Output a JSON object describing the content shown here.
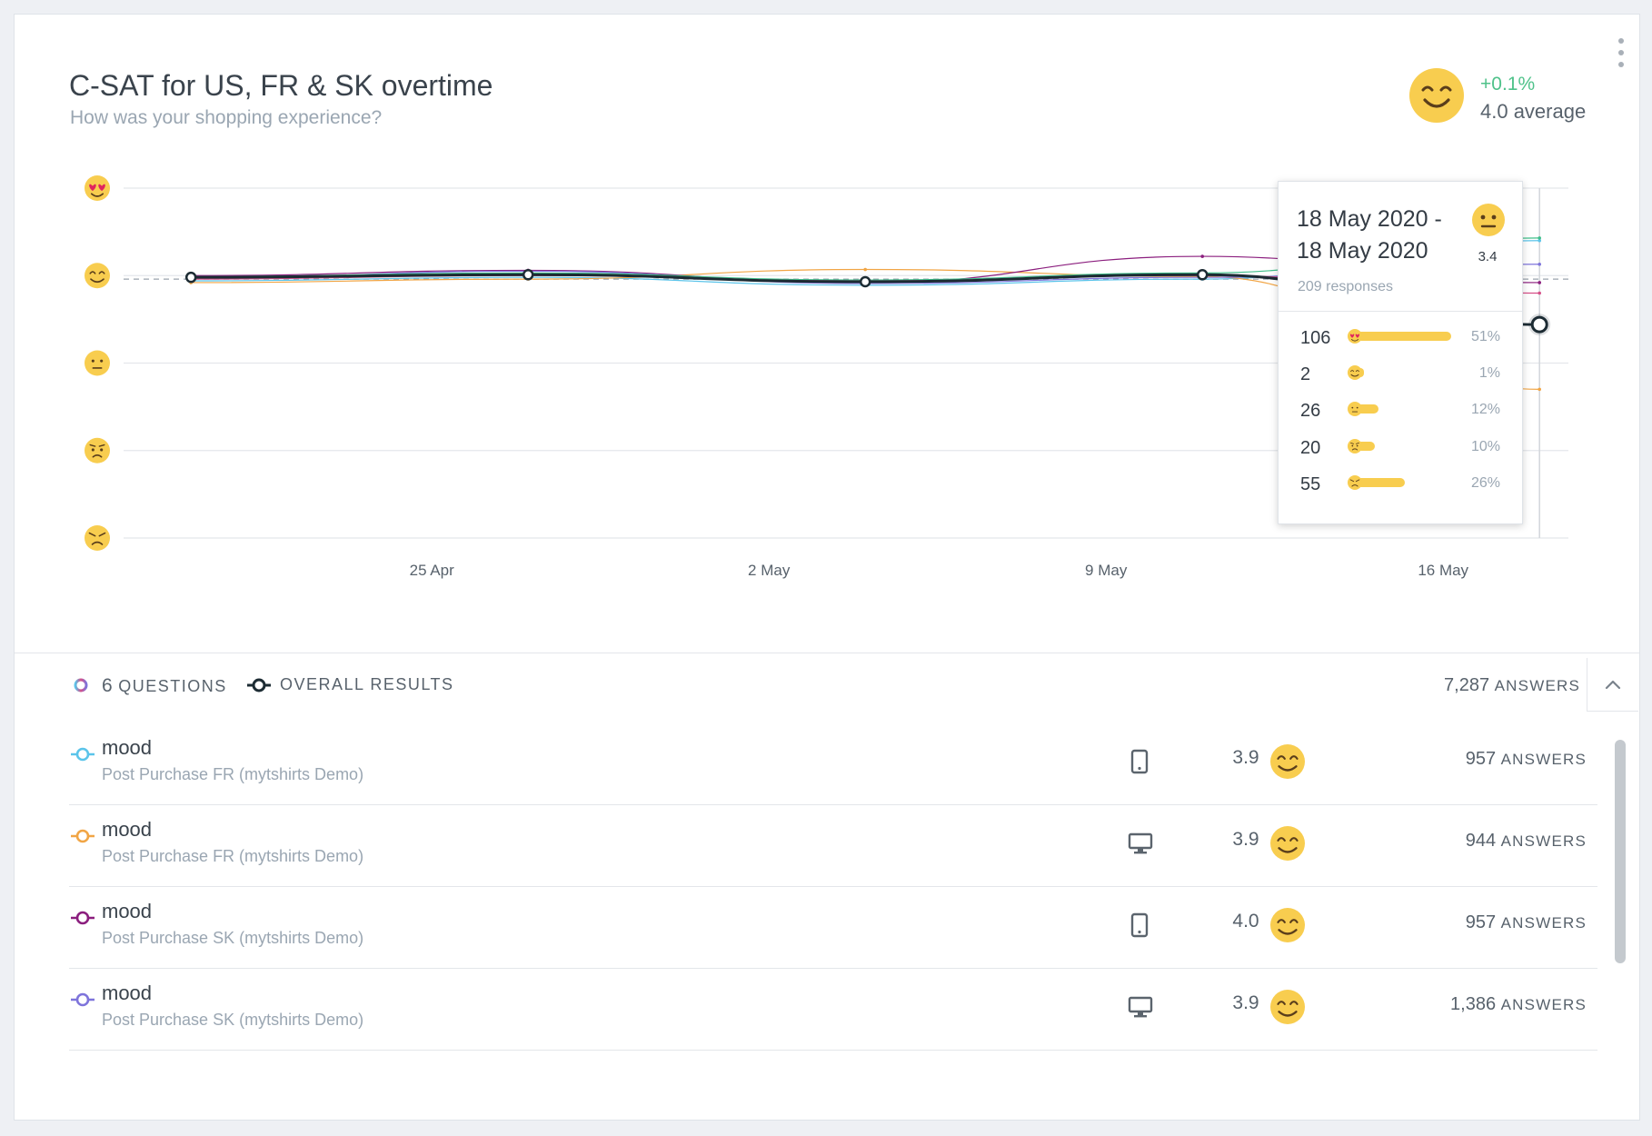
{
  "header": {
    "title": "C-SAT for US, FR & SK overtime",
    "subtitle": "How was your shopping experience?",
    "average_delta": "+0.1%",
    "average_label": "4.0 average"
  },
  "colors": {
    "overall": "#1c2b33",
    "accent_green": "#4fc28a",
    "bar_yellow": "#f8cd4f",
    "face_yellow": "#f8cd4f"
  },
  "chart_data": {
    "type": "line",
    "y_levels": [
      "love-eyes-face",
      "smiling-face",
      "neutral-face",
      "worried-face",
      "angry-face"
    ],
    "ylim": [
      1,
      5
    ],
    "x_tick_labels": [
      "25 Apr",
      "2 May",
      "9 May",
      "16 May"
    ],
    "x_ticks": [
      {
        "label": "25 Apr",
        "day": 25
      },
      {
        "label": "2 May",
        "day": 32
      },
      {
        "label": "9 May",
        "day": 39
      },
      {
        "label": "16 May",
        "day": 46
      }
    ],
    "x_range_days": [
      18.6,
      48.6
    ],
    "x": [
      20,
      27,
      34,
      41,
      48
    ],
    "series": [
      {
        "name": "overall",
        "color": "#1c2b33",
        "width": 3,
        "values": [
          3.98,
          4.01,
          3.93,
          4.01,
          3.44
        ]
      },
      {
        "name": "q1",
        "color": "#5bc4ea",
        "width": 1.2,
        "values": [
          3.94,
          3.98,
          3.89,
          3.96,
          4.4
        ]
      },
      {
        "name": "q2",
        "color": "#f1a545",
        "width": 1.2,
        "values": [
          3.92,
          3.96,
          4.07,
          3.99,
          2.7
        ]
      },
      {
        "name": "q3",
        "color": "#8b1e7e",
        "width": 1.2,
        "values": [
          4.0,
          4.06,
          3.92,
          4.22,
          3.92
        ]
      },
      {
        "name": "q4",
        "color": "#7e74db",
        "width": 1.2,
        "values": [
          3.97,
          4.05,
          3.91,
          3.98,
          4.13
        ]
      },
      {
        "name": "q5",
        "color": "#3fbf8a",
        "width": 1.2,
        "values": [
          3.99,
          4.03,
          3.95,
          4.03,
          4.43
        ]
      },
      {
        "name": "q6",
        "color": "#d64f88",
        "width": 1.2,
        "values": [
          3.96,
          4.0,
          3.94,
          4.0,
          3.8
        ]
      }
    ],
    "average_line": 3.96,
    "overall_markers": [
      0,
      1,
      2,
      3
    ],
    "hover_marker_index": 4,
    "grid": true
  },
  "tooltip": {
    "date_range": "18 May 2020 - 18 May 2020",
    "score": "3.4",
    "responses": "209 responses",
    "rows": [
      {
        "count": "106",
        "face": "love-eyes-face",
        "pct": "51%",
        "fraction": 0.51
      },
      {
        "count": "2",
        "face": "smiling-face",
        "pct": "1%",
        "fraction": 0.01
      },
      {
        "count": "26",
        "face": "neutral-face",
        "pct": "12%",
        "fraction": 0.12
      },
      {
        "count": "20",
        "face": "worried-face",
        "pct": "10%",
        "fraction": 0.1
      },
      {
        "count": "55",
        "face": "angry-face",
        "pct": "26%",
        "fraction": 0.26
      }
    ]
  },
  "legend": {
    "questions_count": "6",
    "questions_label": "QUESTIONS",
    "overall_label": "OVERALL RESULTS",
    "total_answers_value": "7,287",
    "answers_label": "ANSWERS"
  },
  "questions": [
    {
      "title": "mood",
      "subtitle": "Post Purchase FR (mytshirts Demo)",
      "device": "mobile-icon",
      "score": "3.9",
      "answers": "957",
      "answers_label": "ANSWERS",
      "color": "#5bc4ea"
    },
    {
      "title": "mood",
      "subtitle": "Post Purchase FR (mytshirts Demo)",
      "device": "desktop-icon",
      "score": "3.9",
      "answers": "944",
      "answers_label": "ANSWERS",
      "color": "#f1a545"
    },
    {
      "title": "mood",
      "subtitle": "Post Purchase SK (mytshirts Demo)",
      "device": "mobile-icon",
      "score": "4.0",
      "answers": "957",
      "answers_label": "ANSWERS",
      "color": "#8b1e7e"
    },
    {
      "title": "mood",
      "subtitle": "Post Purchase SK (mytshirts Demo)",
      "device": "desktop-icon",
      "score": "3.9",
      "answers": "1,386",
      "answers_label": "ANSWERS",
      "color": "#7e74db"
    }
  ]
}
